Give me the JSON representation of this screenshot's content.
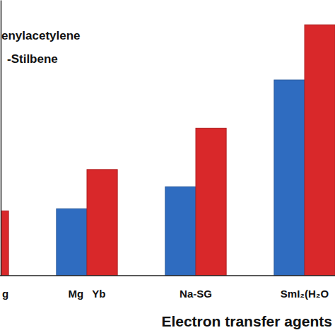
{
  "chart_data": {
    "type": "bar",
    "categories": [
      "g",
      "Mg   Yb",
      "Na-SG",
      "SmI₂(H₂O"
    ],
    "series": [
      {
        "name": "enylacetylene",
        "color": "#2f6cc0",
        "values": [
          null,
          97,
          129,
          284
        ]
      },
      {
        "name": "-Stilbene",
        "color": "#d9282a",
        "values": [
          94,
          154,
          214,
          364
        ]
      }
    ],
    "xlabel": "Electron transfer agents",
    "ylim": [
      0,
      400
    ],
    "yticks": [],
    "tick_labels": "x",
    "legend": "top-left"
  }
}
